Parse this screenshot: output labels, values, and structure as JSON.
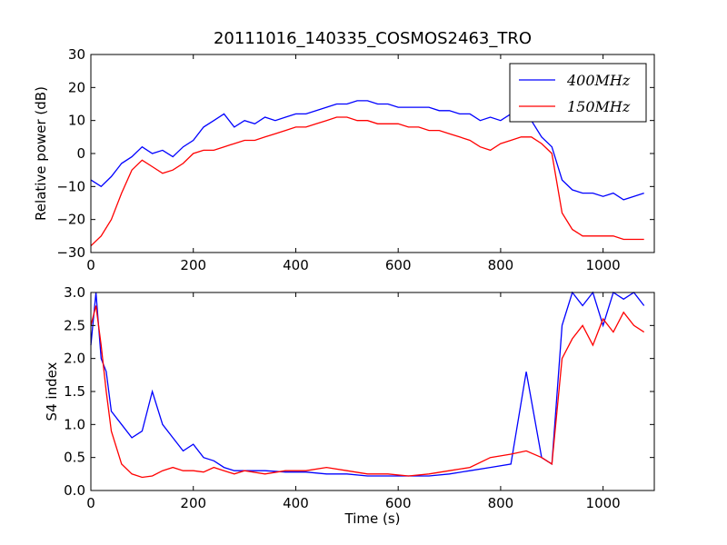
{
  "figure": {
    "title": "20111016_140335_COSMOS2463_TRO"
  },
  "colors": {
    "series_400": "#0000ff",
    "series_150": "#ff0000",
    "axes": "#000000",
    "background": "#ffffff"
  },
  "chart_data": [
    {
      "type": "line",
      "title": "20111016_140335_COSMOS2463_TRO",
      "xlabel": "",
      "ylabel": "Relative power (dB)",
      "xlim": [
        0,
        1100
      ],
      "ylim": [
        -30,
        30
      ],
      "xticks": [
        "0",
        "200",
        "400",
        "600",
        "800",
        "1000"
      ],
      "yticks": [
        "−30",
        "−20",
        "−10",
        "0",
        "10",
        "20",
        "30"
      ],
      "grid": false,
      "legend": {
        "placement": "top-right",
        "entries": [
          "400MHz",
          "150MHz"
        ]
      },
      "series": [
        {
          "name": "400MHz",
          "x": [
            0,
            20,
            40,
            60,
            80,
            100,
            120,
            140,
            160,
            180,
            200,
            220,
            240,
            260,
            280,
            300,
            320,
            340,
            360,
            380,
            400,
            420,
            440,
            460,
            480,
            500,
            520,
            540,
            560,
            580,
            600,
            620,
            640,
            660,
            680,
            700,
            720,
            740,
            760,
            780,
            800,
            820,
            840,
            860,
            880,
            900,
            920,
            940,
            960,
            980,
            1000,
            1020,
            1040,
            1060,
            1080
          ],
          "values": [
            -8,
            -10,
            -7,
            -3,
            -1,
            2,
            0,
            1,
            -1,
            2,
            4,
            8,
            10,
            12,
            8,
            10,
            9,
            11,
            10,
            11,
            12,
            12,
            13,
            14,
            15,
            15,
            16,
            16,
            15,
            15,
            14,
            14,
            14,
            14,
            13,
            13,
            12,
            12,
            10,
            11,
            10,
            12,
            11,
            10,
            5,
            2,
            -8,
            -11,
            -12,
            -12,
            -13,
            -12,
            -14,
            -13,
            -12
          ]
        },
        {
          "name": "150MHz",
          "x": [
            0,
            20,
            40,
            60,
            80,
            100,
            120,
            140,
            160,
            180,
            200,
            220,
            240,
            260,
            280,
            300,
            320,
            340,
            360,
            380,
            400,
            420,
            440,
            460,
            480,
            500,
            520,
            540,
            560,
            580,
            600,
            620,
            640,
            660,
            680,
            700,
            720,
            740,
            760,
            780,
            800,
            820,
            840,
            860,
            880,
            900,
            920,
            940,
            960,
            980,
            1000,
            1020,
            1040,
            1060,
            1080
          ],
          "values": [
            -28,
            -25,
            -20,
            -12,
            -5,
            -2,
            -4,
            -6,
            -5,
            -3,
            0,
            1,
            1,
            2,
            3,
            4,
            4,
            5,
            6,
            7,
            8,
            8,
            9,
            10,
            11,
            11,
            10,
            10,
            9,
            9,
            9,
            8,
            8,
            7,
            7,
            6,
            5,
            4,
            2,
            1,
            3,
            4,
            5,
            5,
            3,
            0,
            -18,
            -23,
            -25,
            -25,
            -25,
            -25,
            -26,
            -26,
            -26
          ]
        }
      ]
    },
    {
      "type": "line",
      "title": "",
      "xlabel": "Time (s)",
      "ylabel": "S4 index",
      "xlim": [
        0,
        1100
      ],
      "ylim": [
        0,
        3
      ],
      "xticks": [
        "0",
        "200",
        "400",
        "600",
        "800",
        "1000"
      ],
      "yticks": [
        "0.0",
        "0.5",
        "1.0",
        "1.5",
        "2.0",
        "2.5",
        "3.0"
      ],
      "grid": false,
      "series": [
        {
          "name": "400MHz",
          "x": [
            0,
            10,
            20,
            30,
            40,
            60,
            80,
            100,
            120,
            140,
            160,
            180,
            200,
            220,
            240,
            260,
            280,
            300,
            340,
            380,
            420,
            460,
            500,
            540,
            580,
            620,
            660,
            700,
            740,
            780,
            820,
            850,
            880,
            900,
            920,
            940,
            960,
            980,
            1000,
            1020,
            1040,
            1060,
            1080
          ],
          "values": [
            2.2,
            3.0,
            2.0,
            1.8,
            1.2,
            1.0,
            0.8,
            0.9,
            1.5,
            1.0,
            0.8,
            0.6,
            0.7,
            0.5,
            0.45,
            0.35,
            0.3,
            0.3,
            0.3,
            0.28,
            0.28,
            0.25,
            0.25,
            0.22,
            0.22,
            0.22,
            0.22,
            0.25,
            0.3,
            0.35,
            0.4,
            1.8,
            0.5,
            0.4,
            2.5,
            3.0,
            2.8,
            3.0,
            2.5,
            3.0,
            2.9,
            3.0,
            2.8
          ]
        },
        {
          "name": "150MHz",
          "x": [
            0,
            10,
            20,
            30,
            40,
            60,
            80,
            100,
            120,
            140,
            160,
            180,
            200,
            220,
            240,
            260,
            280,
            300,
            340,
            380,
            420,
            460,
            500,
            540,
            580,
            620,
            660,
            700,
            740,
            780,
            820,
            850,
            880,
            900,
            920,
            940,
            960,
            980,
            1000,
            1020,
            1040,
            1060,
            1080
          ],
          "values": [
            2.5,
            2.8,
            2.2,
            1.5,
            0.9,
            0.4,
            0.25,
            0.2,
            0.22,
            0.3,
            0.35,
            0.3,
            0.3,
            0.28,
            0.35,
            0.3,
            0.25,
            0.3,
            0.25,
            0.3,
            0.3,
            0.35,
            0.3,
            0.25,
            0.25,
            0.22,
            0.25,
            0.3,
            0.35,
            0.5,
            0.55,
            0.6,
            0.5,
            0.4,
            2.0,
            2.3,
            2.5,
            2.2,
            2.6,
            2.4,
            2.7,
            2.5,
            2.4
          ]
        }
      ]
    }
  ]
}
